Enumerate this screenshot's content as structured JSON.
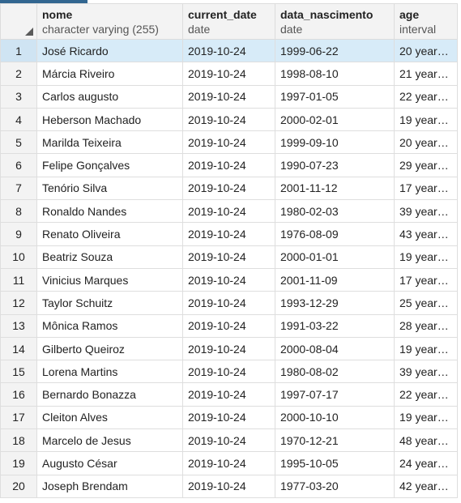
{
  "columns": [
    {
      "name": "nome",
      "type": "character varying (255)"
    },
    {
      "name": "current_date",
      "type": "date"
    },
    {
      "name": "data_nascimento",
      "type": "date"
    },
    {
      "name": "age",
      "type": "interval"
    }
  ],
  "rows": [
    {
      "index": "1",
      "nome": "José Ricardo",
      "current_date": "2019-10-24",
      "data_nascimento": "1999-06-22",
      "age": "20 years ..."
    },
    {
      "index": "2",
      "nome": "Márcia Riveiro",
      "current_date": "2019-10-24",
      "data_nascimento": "1998-08-10",
      "age": "21 years ..."
    },
    {
      "index": "3",
      "nome": "Carlos augusto",
      "current_date": "2019-10-24",
      "data_nascimento": "1997-01-05",
      "age": "22 years ..."
    },
    {
      "index": "4",
      "nome": "Heberson Machado",
      "current_date": "2019-10-24",
      "data_nascimento": "2000-02-01",
      "age": "19 years ..."
    },
    {
      "index": "5",
      "nome": "Marilda Teixeira",
      "current_date": "2019-10-24",
      "data_nascimento": "1999-09-10",
      "age": "20 years ..."
    },
    {
      "index": "6",
      "nome": "Felipe Gonçalves",
      "current_date": "2019-10-24",
      "data_nascimento": "1990-07-23",
      "age": "29 years ..."
    },
    {
      "index": "7",
      "nome": "Tenório Silva",
      "current_date": "2019-10-24",
      "data_nascimento": "2001-11-12",
      "age": "17 years ..."
    },
    {
      "index": "8",
      "nome": "Ronaldo Nandes",
      "current_date": "2019-10-24",
      "data_nascimento": "1980-02-03",
      "age": "39 years ..."
    },
    {
      "index": "9",
      "nome": "Renato Oliveira",
      "current_date": "2019-10-24",
      "data_nascimento": "1976-08-09",
      "age": "43 years ..."
    },
    {
      "index": "10",
      "nome": "Beatriz Souza",
      "current_date": "2019-10-24",
      "data_nascimento": "2000-01-01",
      "age": "19 years ..."
    },
    {
      "index": "11",
      "nome": "Vinicius Marques",
      "current_date": "2019-10-24",
      "data_nascimento": "2001-11-09",
      "age": "17 years ..."
    },
    {
      "index": "12",
      "nome": "Taylor Schuitz",
      "current_date": "2019-10-24",
      "data_nascimento": "1993-12-29",
      "age": "25 years ..."
    },
    {
      "index": "13",
      "nome": "Mônica Ramos",
      "current_date": "2019-10-24",
      "data_nascimento": "1991-03-22",
      "age": "28 years ..."
    },
    {
      "index": "14",
      "nome": "Gilberto Queiroz",
      "current_date": "2019-10-24",
      "data_nascimento": "2000-08-04",
      "age": "19 years ..."
    },
    {
      "index": "15",
      "nome": "Lorena Martins",
      "current_date": "2019-10-24",
      "data_nascimento": "1980-08-02",
      "age": "39 years ..."
    },
    {
      "index": "16",
      "nome": "Bernardo Bonazza",
      "current_date": "2019-10-24",
      "data_nascimento": "1997-07-17",
      "age": "22 years ..."
    },
    {
      "index": "17",
      "nome": "Cleiton Alves",
      "current_date": "2019-10-24",
      "data_nascimento": "2000-10-10",
      "age": "19 years ..."
    },
    {
      "index": "18",
      "nome": "Marcelo de Jesus",
      "current_date": "2019-10-24",
      "data_nascimento": "1970-12-21",
      "age": "48 years ..."
    },
    {
      "index": "19",
      "nome": "Augusto César",
      "current_date": "2019-10-24",
      "data_nascimento": "1995-10-05",
      "age": "24 years ..."
    },
    {
      "index": "20",
      "nome": "Joseph Brendam",
      "current_date": "2019-10-24",
      "data_nascimento": "1977-03-20",
      "age": "42 years ..."
    }
  ],
  "selected_row": "1",
  "colors": {
    "header_bg": "#f3f3f3",
    "selected_bg": "#d7ebf8",
    "accent": "#326690"
  },
  "icons": {
    "corner": "select-all-triangle-icon"
  }
}
